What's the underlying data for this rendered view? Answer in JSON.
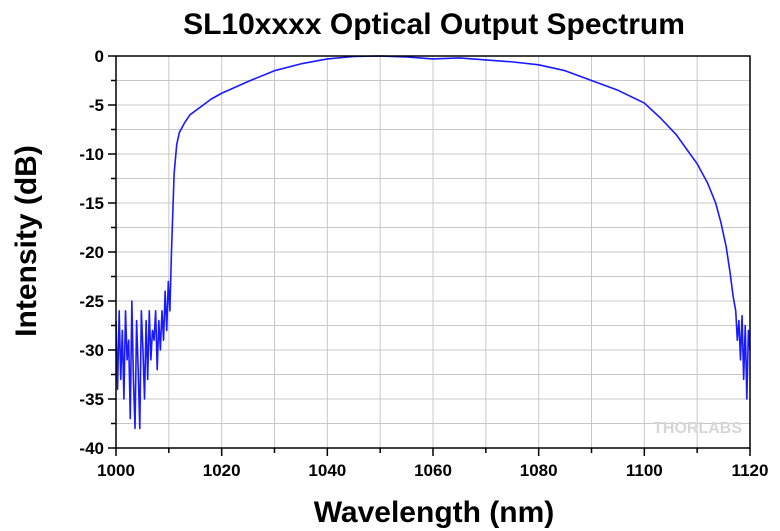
{
  "chart_data": {
    "type": "line",
    "title": "SL10xxxx Optical Output Spectrum",
    "xlabel": "Wavelength (nm)",
    "ylabel": "Intensity (dB)",
    "xlim": [
      1000,
      1120
    ],
    "ylim": [
      -40,
      0
    ],
    "xticks": [
      1000,
      1020,
      1040,
      1060,
      1080,
      1100,
      1120
    ],
    "yticks": [
      0,
      -5,
      -10,
      -15,
      -20,
      -25,
      -30,
      -35,
      -40
    ],
    "grid": true,
    "line_color": "#1a1aff",
    "watermark": "THORLABS",
    "series": [
      {
        "x": [
          1000.0,
          1000.3,
          1000.6,
          1000.9,
          1001.2,
          1001.5,
          1001.8,
          1002.1,
          1002.4,
          1002.7,
          1003.0,
          1003.3,
          1003.6,
          1003.9,
          1004.2,
          1004.5,
          1004.8,
          1005.1,
          1005.4,
          1005.7,
          1006.0,
          1006.3,
          1006.6,
          1006.9,
          1007.2,
          1007.5,
          1007.8,
          1008.1,
          1008.4,
          1008.7,
          1009.0,
          1009.3,
          1009.6,
          1009.9,
          1010.2,
          1010.5,
          1011.0,
          1011.5,
          1012.0,
          1013.0,
          1014.0,
          1016.0,
          1018.0,
          1020.0,
          1025.0,
          1030.0,
          1035.0,
          1040.0,
          1045.0,
          1050.0,
          1055.0,
          1060.0,
          1065.0,
          1070.0,
          1075.0,
          1080.0,
          1085.0,
          1090.0,
          1095.0,
          1100.0,
          1103.0,
          1106.0,
          1108.0,
          1110.0,
          1112.0,
          1113.5,
          1114.5,
          1115.5,
          1116.2,
          1116.8,
          1117.3,
          1117.6,
          1117.9,
          1118.2,
          1118.5,
          1118.8,
          1119.1,
          1119.4,
          1119.7,
          1120.0
        ],
        "values": [
          -27,
          -34,
          -26,
          -33,
          -28,
          -35,
          -26,
          -31,
          -29,
          -37,
          -25,
          -33,
          -38,
          -27,
          -32,
          -38,
          -26,
          -30,
          -35,
          -27,
          -33,
          -26,
          -31,
          -28,
          -29,
          -26,
          -32,
          -27,
          -30,
          -26,
          -29,
          -24,
          -28,
          -23,
          -26,
          -20,
          -12,
          -9,
          -7.8,
          -6.8,
          -6.0,
          -5.2,
          -4.4,
          -3.8,
          -2.6,
          -1.5,
          -0.8,
          -0.3,
          -0.05,
          0.0,
          -0.1,
          -0.3,
          -0.2,
          -0.4,
          -0.6,
          -0.9,
          -1.5,
          -2.5,
          -3.5,
          -4.8,
          -6.3,
          -8.0,
          -9.5,
          -11.0,
          -13.0,
          -15.0,
          -17.0,
          -19.5,
          -22.0,
          -24.5,
          -26.0,
          -29.0,
          -27.0,
          -31.0,
          -26.5,
          -33.0,
          -27.5,
          -35.0,
          -28.0,
          -30.0
        ]
      }
    ]
  }
}
